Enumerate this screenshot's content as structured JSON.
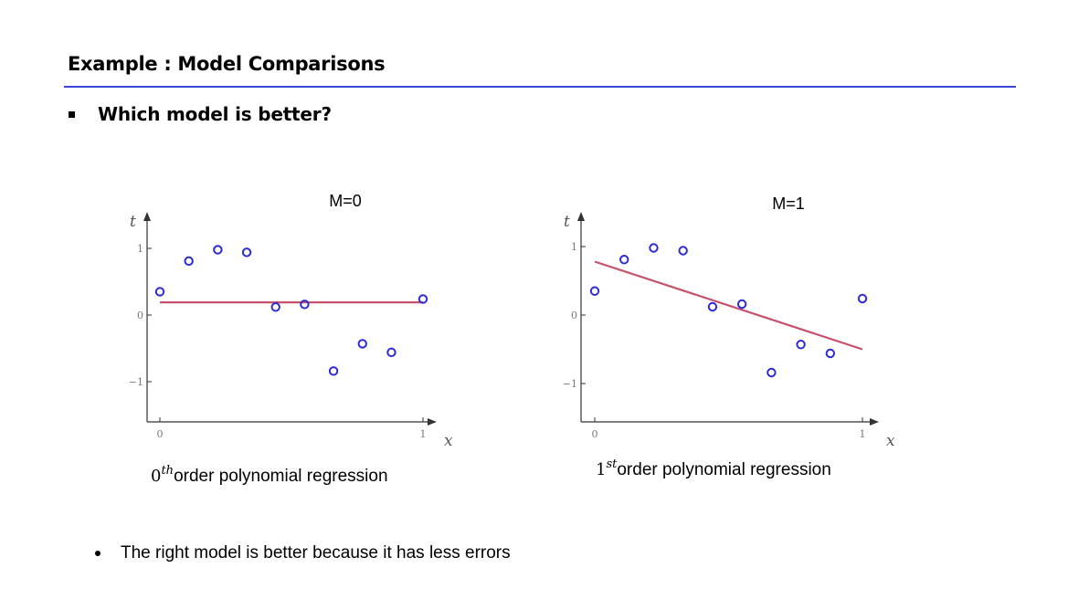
{
  "slide": {
    "title": "Example : Model Comparisons",
    "question": "Which model is better?",
    "conclusion": "The right model is better because it has less errors"
  },
  "colors": {
    "rule": "#3a44d6",
    "points": "#2b2bd8",
    "fit_line": "#c8506a",
    "axis": "#333333"
  },
  "chart_data": [
    {
      "type": "scatter",
      "title": "M=0",
      "xlabel": "x",
      "ylabel": "t",
      "xlim": [
        0,
        1
      ],
      "ylim": [
        -1.5,
        1.3
      ],
      "xticks": [
        "0",
        "1"
      ],
      "yticks": [
        "1",
        "0",
        "−1"
      ],
      "grid": false,
      "caption": {
        "order": "0",
        "suffix": "th",
        "text": "order polynomial regression"
      },
      "points": [
        {
          "x": 0.0,
          "y": 0.35
        },
        {
          "x": 0.11,
          "y": 0.81
        },
        {
          "x": 0.22,
          "y": 0.98
        },
        {
          "x": 0.33,
          "y": 0.94
        },
        {
          "x": 0.44,
          "y": 0.12
        },
        {
          "x": 0.55,
          "y": 0.16
        },
        {
          "x": 0.66,
          "y": -0.84
        },
        {
          "x": 0.77,
          "y": -0.43
        },
        {
          "x": 0.88,
          "y": -0.56
        },
        {
          "x": 1.0,
          "y": 0.24
        }
      ],
      "fit": [
        {
          "x": 0.0,
          "y": 0.19
        },
        {
          "x": 1.0,
          "y": 0.19
        }
      ]
    },
    {
      "type": "scatter",
      "title": "M=1",
      "xlabel": "x",
      "ylabel": "t",
      "xlim": [
        0,
        1
      ],
      "ylim": [
        -1.5,
        1.3
      ],
      "xticks": [
        "0",
        "1"
      ],
      "yticks": [
        "1",
        "0",
        "−1"
      ],
      "grid": false,
      "caption": {
        "order": "1",
        "suffix": "st",
        "text": "order polynomial regression"
      },
      "points": [
        {
          "x": 0.0,
          "y": 0.35
        },
        {
          "x": 0.11,
          "y": 0.81
        },
        {
          "x": 0.22,
          "y": 0.98
        },
        {
          "x": 0.33,
          "y": 0.94
        },
        {
          "x": 0.44,
          "y": 0.12
        },
        {
          "x": 0.55,
          "y": 0.16
        },
        {
          "x": 0.66,
          "y": -0.84
        },
        {
          "x": 0.77,
          "y": -0.43
        },
        {
          "x": 0.88,
          "y": -0.56
        },
        {
          "x": 1.0,
          "y": 0.24
        }
      ],
      "fit": [
        {
          "x": 0.0,
          "y": 0.78
        },
        {
          "x": 1.0,
          "y": -0.5
        }
      ]
    }
  ]
}
